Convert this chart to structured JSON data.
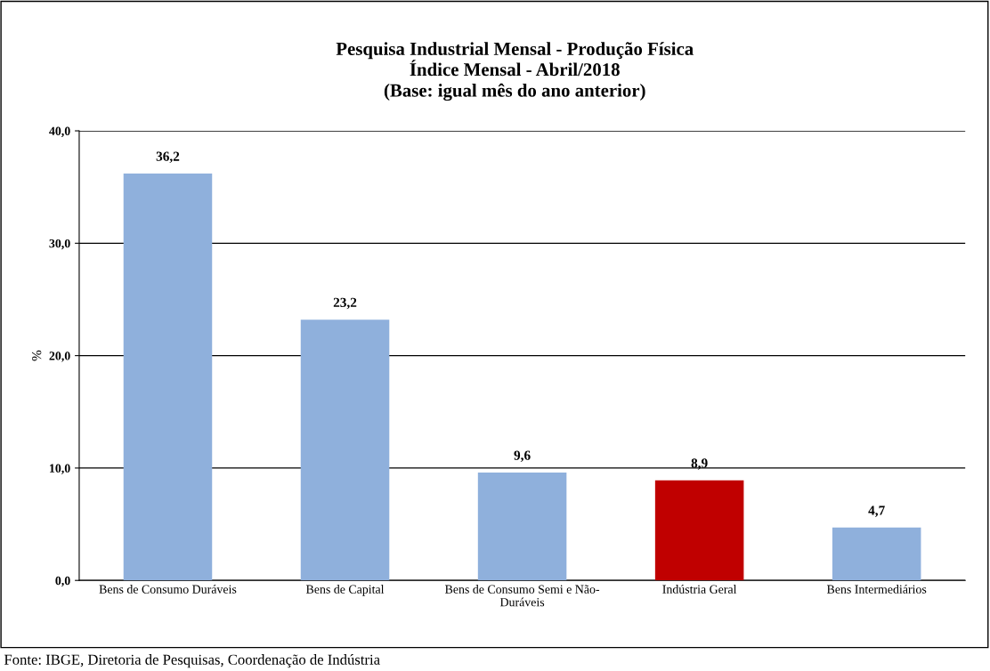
{
  "chart_data": {
    "type": "bar",
    "title": "Pesquisa Industrial Mensal - Produção Física\nÍndice Mensal - Abril/2018\n(Base: igual mês do ano anterior)",
    "ylabel": "%",
    "categories": [
      "Bens de Consumo Duráveis",
      "Bens de Capital",
      "Bens de Consumo Semi e Não-Duráveis",
      "Indústria Geral",
      "Bens Intermediários"
    ],
    "values": [
      36.2,
      23.2,
      9.6,
      8.9,
      4.7
    ],
    "colors": [
      "#8fb0dc",
      "#8fb0dc",
      "#8fb0dc",
      "#c00000",
      "#8fb0dc"
    ],
    "value_labels": [
      "36,2",
      "23,2",
      "9,6",
      "8,9",
      "4,7"
    ],
    "ylim": [
      0,
      40
    ],
    "yticks": [
      {
        "value": 0,
        "label": "0,0"
      },
      {
        "value": 10,
        "label": "10,0"
      },
      {
        "value": 20,
        "label": "20,0"
      },
      {
        "value": 30,
        "label": "30,0"
      },
      {
        "value": 40,
        "label": "40,0"
      }
    ],
    "grid": "y",
    "annotations": [
      "Fonte: IBGE, Diretoria de Pesquisas, Coordenação de Indústria"
    ]
  }
}
